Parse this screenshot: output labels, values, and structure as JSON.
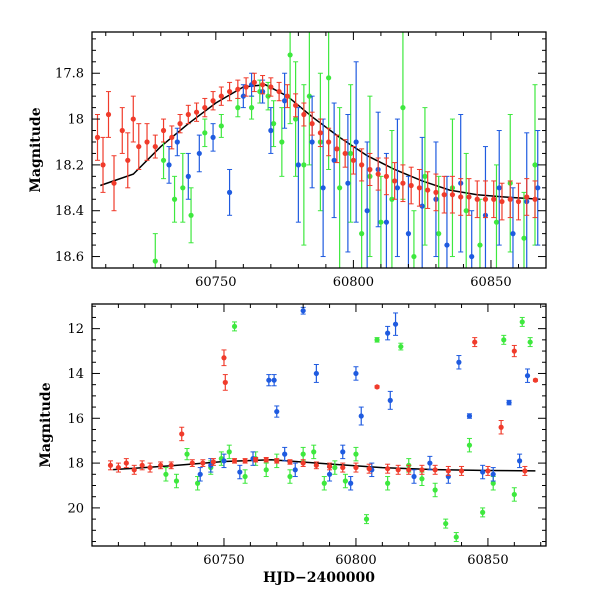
{
  "chart_data": [
    {
      "type": "scatter",
      "title": "",
      "xlabel": "",
      "ylabel": "Magnitude",
      "xlim": [
        60705,
        60870
      ],
      "ylim": [
        18.65,
        17.62
      ],
      "y_inverted": true,
      "xticks": [
        60750,
        60800,
        60850
      ],
      "yticks": [
        17.8,
        18,
        18.2,
        18.4,
        18.6
      ],
      "grid": false,
      "model_curve": {
        "color": "#000000",
        "x": [
          60708,
          60720,
          60730,
          60740,
          60750,
          60760,
          60768,
          60776,
          60785,
          60795,
          60805,
          60815,
          60825,
          60835,
          60845,
          60855,
          60868
        ],
        "y": [
          18.29,
          18.24,
          18.12,
          18.02,
          17.93,
          17.86,
          17.85,
          17.9,
          17.99,
          18.08,
          18.16,
          18.22,
          18.27,
          18.31,
          18.33,
          18.34,
          18.35
        ]
      },
      "series": [
        {
          "color": "#3ee83e",
          "x": [
            60728,
            60731,
            60735,
            60738,
            60741,
            60746,
            60752,
            60758,
            60763,
            60766,
            60769,
            60771,
            60774,
            60777,
            60779,
            60782,
            60784,
            60788,
            60791,
            60795,
            60799,
            60803,
            60806,
            60810,
            60814,
            60818,
            60822,
            60826,
            60831,
            60836,
            60841,
            60846,
            60852,
            60857,
            60862,
            60866
          ],
          "y": [
            18.62,
            18.18,
            18.35,
            18.3,
            18.42,
            18.06,
            18.03,
            17.95,
            17.95,
            17.88,
            17.9,
            18.02,
            18.1,
            17.72,
            18.0,
            18.2,
            17.9,
            18.1,
            17.82,
            18.3,
            18.15,
            18.5,
            18.25,
            18.45,
            18.35,
            17.95,
            18.6,
            18.25,
            18.5,
            18.3,
            18.4,
            18.55,
            18.45,
            18.28,
            18.52,
            18.2
          ],
          "err": [
            0.12,
            0.08,
            0.1,
            0.15,
            0.12,
            0.06,
            0.05,
            0.04,
            0.05,
            0.05,
            0.06,
            0.1,
            0.15,
            0.3,
            0.25,
            0.35,
            0.3,
            0.3,
            0.4,
            0.35,
            0.3,
            0.3,
            0.35,
            0.2,
            0.3,
            0.4,
            0.2,
            0.3,
            0.25,
            0.3,
            0.25,
            0.2,
            0.25,
            0.3,
            0.2,
            0.35
          ]
        },
        {
          "color": "#1f5be0",
          "x": [
            60733,
            60736,
            60740,
            60744,
            60749,
            60755,
            60760,
            60763,
            60767,
            60770,
            60775,
            60780,
            60785,
            60789,
            60793,
            60798,
            60801,
            60805,
            60809,
            60812,
            60816,
            60820,
            60825,
            60830,
            60834,
            60839,
            60843,
            60848,
            60853,
            60858,
            60863,
            60867
          ],
          "y": [
            18.2,
            18.1,
            18.25,
            18.15,
            18.08,
            18.32,
            17.9,
            17.85,
            17.88,
            18.05,
            17.92,
            18.2,
            18.1,
            18.3,
            18.18,
            18.28,
            18.1,
            18.4,
            18.22,
            18.45,
            18.3,
            18.5,
            18.38,
            18.35,
            18.55,
            18.28,
            18.6,
            18.42,
            18.3,
            18.5,
            18.36,
            18.3
          ],
          "err": [
            0.08,
            0.06,
            0.1,
            0.08,
            0.06,
            0.1,
            0.05,
            0.05,
            0.05,
            0.1,
            0.12,
            0.25,
            0.2,
            0.3,
            0.25,
            0.3,
            0.35,
            0.3,
            0.25,
            0.3,
            0.3,
            0.25,
            0.3,
            0.25,
            0.3,
            0.3,
            0.2,
            0.3,
            0.25,
            0.2,
            0.3,
            0.25
          ]
        },
        {
          "color": "#f03b2b",
          "x": [
            60707,
            60709,
            60711,
            60713,
            60716,
            60718,
            60720,
            60722,
            60725,
            60728,
            60731,
            60734,
            60737,
            60740,
            60743,
            60746,
            60749,
            60752,
            60755,
            60758,
            60761,
            60764,
            60767,
            60770,
            60773,
            60776,
            60779,
            60782,
            60785,
            60788,
            60791,
            60794,
            60797,
            60800,
            60803,
            60806,
            60809,
            60812,
            60815,
            60818,
            60821,
            60824,
            60827,
            60830,
            60833,
            60836,
            60839,
            60842,
            60845,
            60848,
            60851,
            60854,
            60857,
            60860,
            60863,
            60866
          ],
          "y": [
            18.08,
            18.2,
            17.98,
            18.28,
            18.05,
            18.18,
            18.0,
            18.12,
            18.1,
            18.12,
            18.05,
            18.08,
            18.02,
            17.98,
            17.97,
            17.95,
            17.92,
            17.9,
            17.88,
            17.87,
            17.86,
            17.84,
            17.85,
            17.86,
            17.88,
            17.9,
            17.94,
            17.98,
            18.02,
            18.06,
            18.1,
            18.13,
            18.15,
            18.18,
            18.2,
            18.22,
            18.24,
            18.25,
            18.27,
            18.28,
            18.29,
            18.3,
            18.31,
            18.32,
            18.33,
            18.33,
            18.34,
            18.34,
            18.35,
            18.35,
            18.35,
            18.36,
            18.35,
            18.36,
            18.34,
            18.35
          ],
          "err": [
            0.1,
            0.12,
            0.1,
            0.12,
            0.1,
            0.12,
            0.1,
            0.1,
            0.08,
            0.05,
            0.05,
            0.05,
            0.04,
            0.04,
            0.04,
            0.04,
            0.04,
            0.04,
            0.04,
            0.04,
            0.04,
            0.04,
            0.04,
            0.04,
            0.04,
            0.05,
            0.05,
            0.05,
            0.05,
            0.06,
            0.06,
            0.06,
            0.06,
            0.06,
            0.07,
            0.07,
            0.07,
            0.08,
            0.08,
            0.08,
            0.08,
            0.08,
            0.08,
            0.08,
            0.08,
            0.08,
            0.08,
            0.08,
            0.08,
            0.08,
            0.08,
            0.08,
            0.08,
            0.08,
            0.08,
            0.08
          ]
        }
      ]
    },
    {
      "type": "scatter",
      "title": "",
      "xlabel": "HJD−2400000",
      "ylabel": "Magnitude",
      "xlim": [
        60700,
        60872
      ],
      "ylim": [
        21.7,
        10.9
      ],
      "y_inverted": true,
      "xticks": [
        60750,
        60800,
        60850
      ],
      "yticks": [
        12,
        14,
        16,
        18,
        20
      ],
      "grid": false,
      "model_curve": {
        "color": "#000000",
        "x": [
          60708,
          60730,
          60750,
          60768,
          60790,
          60810,
          60830,
          60850,
          60868
        ],
        "y": [
          18.29,
          18.12,
          17.93,
          17.85,
          18.04,
          18.2,
          18.29,
          18.33,
          18.35
        ]
      },
      "series": [
        {
          "color": "#3ee83e",
          "x": [
            60728,
            60732,
            60736,
            60740,
            60745,
            60749,
            60752,
            60754,
            60758,
            60762,
            60766,
            60770,
            60775,
            60780,
            60784,
            60788,
            60792,
            60796,
            60800,
            60804,
            60808,
            60812,
            60817,
            60820,
            60825,
            60830,
            60834,
            60838,
            60843,
            60848,
            60852,
            60856,
            60860,
            60863,
            60866
          ],
          "y": [
            18.5,
            18.8,
            17.6,
            18.9,
            18.2,
            17.8,
            17.5,
            11.9,
            18.6,
            17.8,
            18.3,
            17.9,
            18.6,
            17.6,
            17.5,
            18.9,
            18.2,
            18.8,
            17.6,
            20.5,
            12.5,
            18.9,
            12.8,
            18.1,
            18.7,
            19.2,
            20.7,
            21.3,
            17.2,
            20.2,
            18.9,
            12.5,
            19.4,
            11.7,
            12.6
          ],
          "err": [
            0.3,
            0.3,
            0.25,
            0.3,
            0.3,
            0.3,
            0.3,
            0.2,
            0.3,
            0.3,
            0.3,
            0.3,
            0.3,
            0.3,
            0.3,
            0.3,
            0.3,
            0.3,
            0.3,
            0.2,
            0.1,
            0.3,
            0.15,
            0.3,
            0.3,
            0.3,
            0.2,
            0.2,
            0.3,
            0.2,
            0.3,
            0.2,
            0.3,
            0.2,
            0.2
          ]
        },
        {
          "color": "#1f5be0",
          "x": [
            60741,
            60745,
            60750,
            60756,
            60761,
            60767,
            60769,
            60770,
            60773,
            60777,
            60780,
            60785,
            60790,
            60795,
            60798,
            60800,
            60802,
            60806,
            60812,
            60813,
            60815,
            60822,
            60828,
            60835,
            60839,
            60843,
            60848,
            60852,
            60858,
            60862,
            60865
          ],
          "y": [
            18.5,
            18.1,
            17.9,
            18.4,
            17.8,
            14.3,
            14.3,
            15.7,
            17.6,
            18.3,
            11.2,
            14.0,
            18.5,
            17.5,
            18.9,
            14.0,
            15.9,
            18.3,
            12.2,
            15.2,
            11.8,
            18.6,
            18.0,
            18.6,
            13.5,
            15.9,
            18.4,
            18.5,
            15.3,
            17.9,
            14.1
          ],
          "err": [
            0.3,
            0.3,
            0.3,
            0.3,
            0.3,
            0.25,
            0.25,
            0.25,
            0.3,
            0.3,
            0.15,
            0.4,
            0.3,
            0.3,
            0.3,
            0.3,
            0.4,
            0.3,
            0.3,
            0.4,
            0.5,
            0.3,
            0.3,
            0.3,
            0.3,
            0.1,
            0.3,
            0.3,
            0.1,
            0.3,
            0.3
          ]
        },
        {
          "color": "#f03b2b",
          "x": [
            60707,
            60710,
            60713,
            60716,
            60719,
            60722,
            60726,
            60730,
            60734,
            60738,
            60742,
            60746,
            60750,
            60750.5,
            60754,
            60758,
            60762,
            60766,
            60770,
            60775,
            60780,
            60785,
            60790,
            60795,
            60800,
            60805,
            60808,
            60812,
            60816,
            60820,
            60825,
            60830,
            60835,
            60840,
            60845,
            60850,
            60855,
            60860,
            60864,
            60868
          ],
          "y": [
            18.1,
            18.2,
            18.0,
            18.3,
            18.1,
            18.2,
            18.1,
            18.1,
            16.7,
            18.0,
            18.0,
            17.95,
            13.3,
            14.4,
            17.9,
            17.9,
            17.85,
            17.85,
            17.9,
            17.95,
            18.0,
            18.1,
            18.15,
            18.2,
            18.2,
            18.25,
            14.6,
            18.25,
            18.3,
            18.3,
            18.3,
            18.3,
            18.35,
            18.35,
            12.6,
            18.35,
            16.4,
            13.0,
            18.35,
            14.3
          ],
          "err": [
            0.2,
            0.2,
            0.2,
            0.2,
            0.2,
            0.2,
            0.15,
            0.15,
            0.3,
            0.15,
            0.15,
            0.15,
            0.35,
            0.35,
            0.1,
            0.1,
            0.1,
            0.1,
            0.1,
            0.1,
            0.15,
            0.15,
            0.15,
            0.2,
            0.2,
            0.2,
            0.05,
            0.2,
            0.2,
            0.2,
            0.2,
            0.2,
            0.2,
            0.2,
            0.2,
            0.2,
            0.3,
            0.25,
            0.2,
            0.05
          ]
        }
      ]
    }
  ]
}
